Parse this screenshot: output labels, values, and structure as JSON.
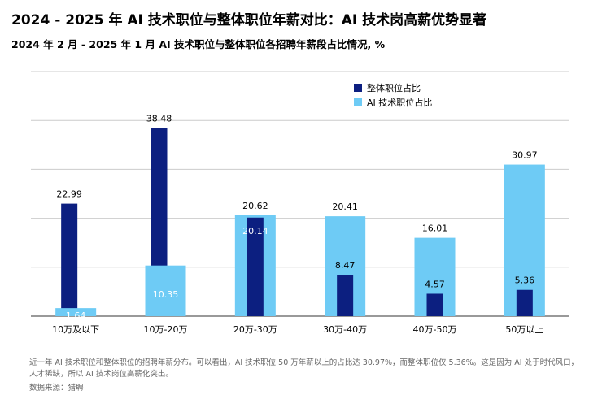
{
  "title": "2024 - 2025 年 AI 技术职位与整体职位年薪对比：AI 技术岗高薪优势显著",
  "subtitle": "2024 年 2 月 - 2025 年 1 月 AI 技术职位与整体职位各招聘年薪段占比情况, %",
  "footnote": "近一年 AI 技术职位和整体职位的招聘年薪分布。可以看出，AI 技术职位 50 万年薪以上的占比达 30.97%，而整体职位仅 5.36%。这是因为 AI 处于时代风口，人才稀缺，所以 AI 技术岗位高薪化突出。",
  "source": "数据来源：猎聘",
  "colors": {
    "ai": "#6ecbf5",
    "overall": "#0c1f80",
    "grid": "#cccccc"
  },
  "chart_data": {
    "type": "bar",
    "categories": [
      "10万及以下",
      "10万-20万",
      "20万-30万",
      "30万-40万",
      "40万-50万",
      "50万以上"
    ],
    "series": [
      {
        "name": "整体职位占比",
        "values": [
          22.99,
          38.48,
          20.14,
          8.47,
          4.57,
          5.36
        ]
      },
      {
        "name": "AI 技术职位占比",
        "values": [
          1.64,
          10.35,
          20.62,
          20.41,
          16.01,
          30.97
        ]
      }
    ],
    "ylim": [
      0,
      50
    ],
    "grid": true,
    "legend": "top-right",
    "xlabel": "",
    "ylabel": ""
  }
}
